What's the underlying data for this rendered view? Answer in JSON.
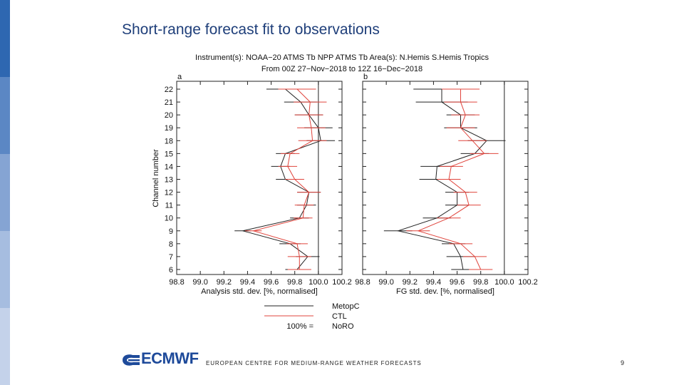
{
  "slide": {
    "title": "Short-range forecast fit to observations",
    "footer": "EUROPEAN CENTRE FOR MEDIUM-RANGE WEATHER FORECASTS",
    "page_number": "9",
    "logo_text": "ECMWF"
  },
  "colors": {
    "sidebar": [
      "#2e67b1",
      "#5b87c4",
      "#85a4d3",
      "#a6bde0",
      "#c4d2ea"
    ],
    "metop": "#222222",
    "ctl": "#e0443c",
    "title": "#1f3f7a",
    "logo": "#1e4a9a"
  },
  "chart_data": {
    "type": "line",
    "header_line1": "Instrument(s): NOAA−20 ATMS Tb NPP ATMS Tb     Area(s): N.Hemis S.Hemis Tropics",
    "header_line2": "From 00Z 27−Nov−2018 to 12Z 16−Dec−2018",
    "ylabel": "Channel number",
    "channels": [
      "22",
      "21",
      "20",
      "19",
      "18",
      "15",
      "14",
      "13",
      "12",
      "11",
      "10",
      "9",
      "8",
      "7",
      "6"
    ],
    "xticks": [
      "98.8",
      "99.0",
      "99.2",
      "99.4",
      "99.6",
      "99.8",
      "100.0",
      "100.2"
    ],
    "xlim": [
      98.8,
      100.2
    ],
    "reference_value": 100.0,
    "legend": {
      "entries": [
        "MetopC",
        "CTL",
        "NoRO"
      ],
      "note": "100% ="
    },
    "panels": [
      {
        "label": "a",
        "xlabel": "Analysis std. dev. [%, normalised]",
        "series": [
          {
            "name": "MetopC",
            "values": [
              99.72,
              99.85,
              99.92,
              100.0,
              100.02,
              99.72,
              99.68,
              99.72,
              99.92,
              99.9,
              99.84,
              99.36,
              99.76,
              99.91,
              99.82
            ],
            "errors": [
              0.16,
              0.14,
              0.12,
              0.12,
              0.12,
              0.08,
              0.08,
              0.08,
              0.1,
              0.08,
              0.08,
              0.07,
              0.09,
              0.1,
              0.1
            ]
          },
          {
            "name": "CTL",
            "values": [
              99.82,
              99.93,
              99.92,
              99.94,
              99.95,
              99.76,
              99.74,
              99.8,
              99.92,
              99.88,
              99.87,
              99.45,
              99.82,
              99.84,
              99.84
            ],
            "errors": [
              0.16,
              0.14,
              0.12,
              0.12,
              0.12,
              0.08,
              0.08,
              0.08,
              0.1,
              0.08,
              0.08,
              0.07,
              0.09,
              0.1,
              0.1
            ]
          }
        ]
      },
      {
        "label": "b",
        "xlabel": "FG std. dev. [%, normalised]",
        "series": [
          {
            "name": "MetopC",
            "values": [
              99.47,
              99.47,
              99.63,
              99.63,
              99.85,
              99.75,
              99.43,
              99.42,
              99.6,
              99.6,
              99.43,
              99.1,
              99.57,
              99.63,
              99.65
            ],
            "errors": [
              0.24,
              0.22,
              0.12,
              0.14,
              0.16,
              0.12,
              0.14,
              0.14,
              0.1,
              0.1,
              0.12,
              0.12,
              0.1,
              0.12,
              0.1
            ]
          },
          {
            "name": "CTL",
            "values": [
              99.63,
              99.63,
              99.67,
              99.63,
              99.73,
              99.83,
              99.55,
              99.53,
              99.67,
              99.7,
              99.53,
              99.27,
              99.63,
              99.75,
              99.8
            ],
            "errors": [
              0.16,
              0.14,
              0.12,
              0.12,
              0.12,
              0.12,
              0.1,
              0.1,
              0.1,
              0.1,
              0.1,
              0.1,
              0.1,
              0.1,
              0.1
            ]
          }
        ]
      }
    ]
  }
}
